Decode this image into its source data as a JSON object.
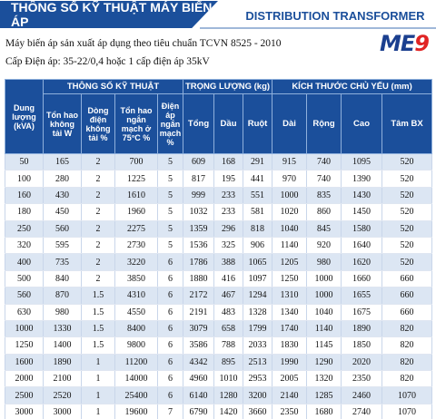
{
  "banner": {
    "title_vi": "THÔNG SỐ KỸ THUẬT MÁY BIẾN ÁP",
    "title_en": "DISTRIBUTION TRANSFORMER"
  },
  "logo": {
    "main": "ME",
    "num": "9"
  },
  "intro": {
    "line1": "Máy biến áp sản xuất áp dụng theo tiêu chuẩn TCVN 8525 - 2010",
    "line2": "Cấp Điện áp: 35-22/0,4 hoặc 1 cấp điện áp 35kV"
  },
  "colors": {
    "header_bg": "#1b4f9b",
    "row_alt": "#dce6f3",
    "logo_red": "#e02424"
  },
  "table": {
    "col_capacity": "Dung lượng (kVA)",
    "group_tech": "THÔNG SỐ KỸ THUẬT",
    "group_weight": "TRỌNG LƯỢNG (kg)",
    "group_dims": "KÍCH THƯỚC CHỦ YẾU (mm)",
    "sub_headers": [
      "Tổn hao không tải W",
      "Dòng điện không tải %",
      "Tổn hao ngắn mạch ở 75°C %",
      "Điện áp ngắn mạch %",
      "Tổng",
      "Dầu",
      "Ruột",
      "Dài",
      "Rộng",
      "Cao",
      "Tâm BX"
    ],
    "rows": [
      [
        "50",
        "165",
        "2",
        "700",
        "5",
        "609",
        "168",
        "291",
        "915",
        "740",
        "1095",
        "520"
      ],
      [
        "100",
        "280",
        "2",
        "1225",
        "5",
        "817",
        "195",
        "441",
        "970",
        "740",
        "1390",
        "520"
      ],
      [
        "160",
        "430",
        "2",
        "1610",
        "5",
        "999",
        "233",
        "551",
        "1000",
        "835",
        "1430",
        "520"
      ],
      [
        "180",
        "450",
        "2",
        "1960",
        "5",
        "1032",
        "233",
        "581",
        "1020",
        "860",
        "1450",
        "520"
      ],
      [
        "250",
        "560",
        "2",
        "2275",
        "5",
        "1359",
        "296",
        "818",
        "1040",
        "845",
        "1580",
        "520"
      ],
      [
        "320",
        "595",
        "2",
        "2730",
        "5",
        "1536",
        "325",
        "906",
        "1140",
        "920",
        "1640",
        "520"
      ],
      [
        "400",
        "735",
        "2",
        "3220",
        "6",
        "1786",
        "388",
        "1065",
        "1205",
        "980",
        "1620",
        "520"
      ],
      [
        "500",
        "840",
        "2",
        "3850",
        "6",
        "1880",
        "416",
        "1097",
        "1250",
        "1000",
        "1660",
        "660"
      ],
      [
        "560",
        "870",
        "1.5",
        "4310",
        "6",
        "2172",
        "467",
        "1294",
        "1310",
        "1000",
        "1655",
        "660"
      ],
      [
        "630",
        "980",
        "1.5",
        "4550",
        "6",
        "2191",
        "483",
        "1328",
        "1340",
        "1040",
        "1675",
        "660"
      ],
      [
        "1000",
        "1330",
        "1.5",
        "8400",
        "6",
        "3079",
        "658",
        "1799",
        "1740",
        "1140",
        "1890",
        "820"
      ],
      [
        "1250",
        "1400",
        "1.5",
        "9800",
        "6",
        "3586",
        "788",
        "2033",
        "1830",
        "1145",
        "1850",
        "820"
      ],
      [
        "1600",
        "1890",
        "1",
        "11200",
        "6",
        "4342",
        "895",
        "2513",
        "1990",
        "1290",
        "2020",
        "820"
      ],
      [
        "2000",
        "2100",
        "1",
        "14000",
        "6",
        "4960",
        "1010",
        "2953",
        "2005",
        "1320",
        "2350",
        "820"
      ],
      [
        "2500",
        "2520",
        "1",
        "25400",
        "6",
        "6140",
        "1280",
        "3200",
        "2140",
        "1285",
        "2460",
        "1070"
      ],
      [
        "3000",
        "3000",
        "1",
        "19600",
        "7",
        "6790",
        "1420",
        "3660",
        "2350",
        "1680",
        "2740",
        "1070"
      ]
    ]
  }
}
